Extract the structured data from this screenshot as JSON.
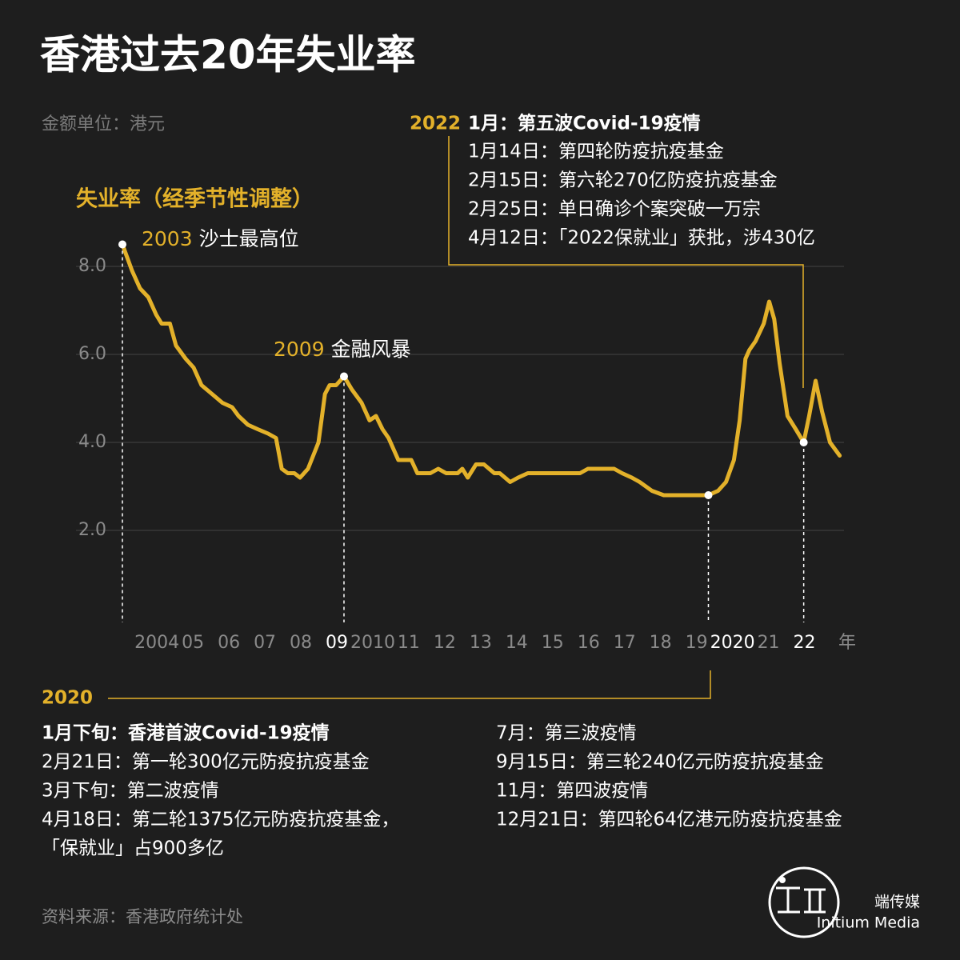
{
  "chart_data": {
    "type": "line",
    "title": "香港过去20年失业率",
    "subtitle": "金额单位：港元",
    "ylabel": "失业率（经季节性调整）",
    "xlabel": "年",
    "color": "#e3b12a",
    "x": [
      2003.04,
      2003.31,
      2003.53,
      2003.76,
      2003.98,
      2004.13,
      2004.36,
      2004.53,
      2004.8,
      2005.02,
      2005.24,
      2005.53,
      2005.82,
      2006.09,
      2006.27,
      2006.53,
      2006.8,
      2007.09,
      2007.31,
      2007.47,
      2007.64,
      2007.82,
      2007.98,
      2008.2,
      2008.49,
      2008.67,
      2008.8,
      2008.98,
      2009.2,
      2009.42,
      2009.69,
      2009.91,
      2010.09,
      2010.27,
      2010.44,
      2010.71,
      2011.07,
      2011.24,
      2011.6,
      2011.82,
      2012.04,
      2012.36,
      2012.49,
      2012.64,
      2012.87,
      2013.09,
      2013.38,
      2013.53,
      2013.82,
      2014.04,
      2014.31,
      2014.98,
      2015.76,
      2015.98,
      2016.71,
      2016.93,
      2017.2,
      2017.42,
      2017.76,
      2018.09,
      2018.98,
      2019.33,
      2019.6,
      2019.82,
      2020.04,
      2020.2,
      2020.36,
      2020.47,
      2020.64,
      2020.87,
      2021.02,
      2021.16,
      2021.31,
      2021.53,
      2021.76,
      2021.98,
      2022.13,
      2022.31,
      2022.49,
      2022.71,
      2022.98
    ],
    "values": [
      8.5,
      7.9,
      7.5,
      7.3,
      6.9,
      6.7,
      6.7,
      6.2,
      5.9,
      5.7,
      5.3,
      5.1,
      4.9,
      4.8,
      4.6,
      4.4,
      4.3,
      4.2,
      4.1,
      3.4,
      3.3,
      3.3,
      3.2,
      3.4,
      4.0,
      5.1,
      5.3,
      5.3,
      5.5,
      5.2,
      4.9,
      4.5,
      4.6,
      4.3,
      4.1,
      3.6,
      3.6,
      3.3,
      3.3,
      3.4,
      3.3,
      3.3,
      3.4,
      3.2,
      3.5,
      3.5,
      3.3,
      3.3,
      3.1,
      3.2,
      3.3,
      3.3,
      3.3,
      3.4,
      3.4,
      3.3,
      3.2,
      3.1,
      2.9,
      2.8,
      2.8,
      2.8,
      2.9,
      3.1,
      3.6,
      4.5,
      5.9,
      6.1,
      6.3,
      6.7,
      7.2,
      6.8,
      5.8,
      4.6,
      4.3,
      4.0,
      4.6,
      5.4,
      4.7,
      4.0,
      3.7
    ],
    "xlim": [
      2001.75,
      2023.1
    ],
    "ylim": [
      0,
      8.6
    ],
    "yticks": [
      {
        "value": 2,
        "label": "2.0"
      },
      {
        "value": 4,
        "label": "4.0"
      },
      {
        "value": 6,
        "label": "6.0"
      },
      {
        "value": 8,
        "label": "8.0"
      }
    ],
    "xticks": [
      2004,
      {
        "value": 2005,
        "label": "05"
      },
      {
        "value": 2006,
        "label": "06"
      },
      {
        "value": 2007,
        "label": "07"
      },
      {
        "value": 2008,
        "label": "08"
      },
      {
        "value": 2009,
        "label": "09"
      },
      2010,
      {
        "value": 2011,
        "label": "11"
      },
      {
        "value": 2012,
        "label": "12"
      },
      {
        "value": 2013,
        "label": "13"
      },
      {
        "value": 2014,
        "label": "14"
      },
      {
        "value": 2015,
        "label": "15"
      },
      {
        "value": 2016,
        "label": "16"
      },
      {
        "value": 2017,
        "label": "17"
      },
      {
        "value": 2018,
        "label": "18"
      },
      {
        "value": 2019,
        "label": "19"
      },
      2020,
      {
        "value": 2021,
        "label": "21"
      },
      {
        "value": 2022,
        "label": "22"
      }
    ],
    "grid": true,
    "annotations": [
      {
        "year": "2003",
        "text": "沙士最高位"
      },
      {
        "year": "2009",
        "text": "金融风暴"
      }
    ],
    "events": [
      {
        "year": "2022",
        "heading": "1月：第五波Covid-19疫情",
        "items": [
          "1月14日：第四轮防疫抗疫基金",
          "2月15日：第六轮270亿防疫抗疫基金",
          "2月25日：单日确诊个案突破一万宗",
          "4月12日：「2022保就业」获批，涉430亿"
        ]
      },
      {
        "year": "2020",
        "heading": "1月下旬：香港首波Covid-19疫情",
        "items": [
          "2月21日：第一轮300亿元防疫抗疫基金",
          "3月下旬：第二波疫情",
          "4月18日：第二轮1375亿元防疫抗疫基金，",
          "「保就业」占900多亿"
        ],
        "items_right": [
          "7月：第三波疫情",
          "9月15日：第三轮240亿元防疫抗疫基金",
          "11月：第四波疫情",
          "12月21日：第四轮64亿港元防疫抗疫基金"
        ]
      }
    ],
    "source": "资料来源：香港政府统计处",
    "logo": {
      "cn": "端传媒",
      "en": "Initium Media"
    }
  }
}
